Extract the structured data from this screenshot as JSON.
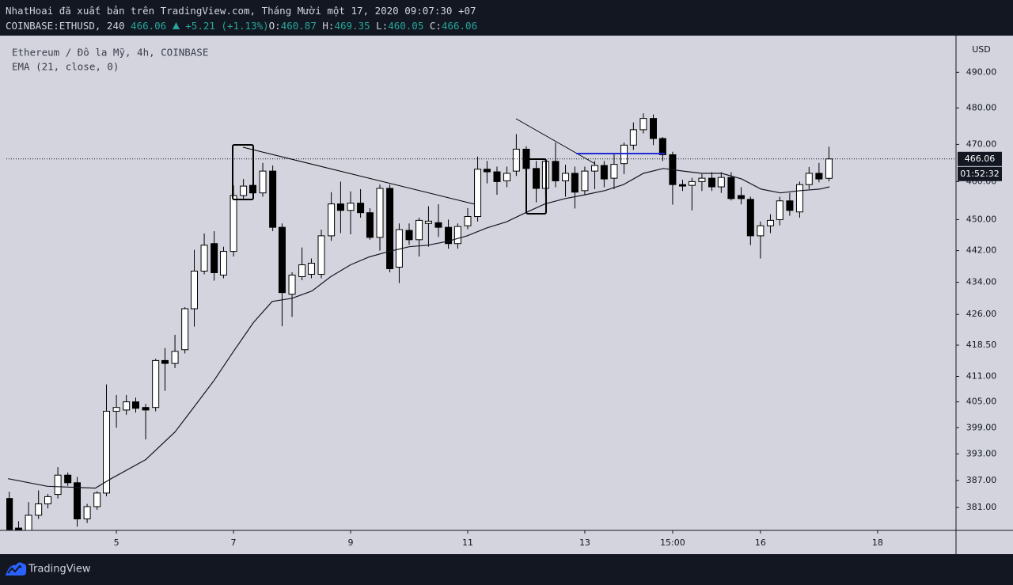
{
  "chart_data": {
    "type": "candlestick",
    "title": "Ethereum / Đô la Mỹ, 4h, COINBASE",
    "header": {
      "publisher": "NhatHoai đã xuất bản trên TradingView.com, Tháng Mười một 17, 2020 09:07:30 +07",
      "symbol": "COINBASE:ETHUSD, 240",
      "change": "+5.21 (+1.13%)",
      "ohlc_labels": [
        "O:",
        "H:",
        "L:",
        "C:"
      ]
    },
    "y_axis_label": "USD",
    "countdown": "01:52:32",
    "up_color": "#ffffff",
    "down_color": "#000000",
    "wick_color": "#000000",
    "log_scale": true,
    "grid": false,
    "x": [
      3.17,
      3.33,
      3.5,
      3.67,
      3.83,
      4,
      4.17,
      4.33,
      4.5,
      4.67,
      4.83,
      5,
      5.17,
      5.33,
      5.5,
      5.67,
      5.83,
      6,
      6.17,
      6.33,
      6.5,
      6.67,
      6.83,
      7,
      7.17,
      7.33,
      7.5,
      7.67,
      7.83,
      8,
      8.17,
      8.33,
      8.5,
      8.67,
      8.83,
      9,
      9.17,
      9.33,
      9.5,
      9.67,
      9.83,
      10,
      10.17,
      10.33,
      10.5,
      10.67,
      10.83,
      11,
      11.17,
      11.33,
      11.5,
      11.67,
      11.83,
      12,
      12.17,
      12.33,
      12.5,
      12.67,
      12.83,
      13,
      13.17,
      13.33,
      13.5,
      13.67,
      13.83,
      14,
      14.17,
      14.33,
      14.5,
      14.67,
      14.83,
      15,
      15.17,
      15.33,
      15.5,
      15.67,
      15.83,
      16,
      16.17,
      16.33,
      16.5,
      16.67,
      16.83,
      17,
      17.17
    ],
    "open": [
      383.0,
      376.5,
      376.0,
      379.3,
      381.8,
      383.9,
      388.2,
      386.5,
      378.5,
      381.2,
      384.2,
      402.8,
      403.1,
      405.0,
      403.7,
      403.7,
      414.8,
      414.1,
      417.4,
      427.4,
      436.8,
      443.8,
      435.8,
      441.8,
      456.3,
      459.0,
      457.0,
      462.8,
      448.0,
      431.0,
      435.4,
      436.0,
      436.0,
      445.8,
      454.1,
      452.4,
      454.3,
      451.8,
      445.4,
      458.2,
      437.8,
      447.2,
      444.8,
      449.0,
      449.2,
      448.0,
      443.8,
      448.4,
      450.8,
      463.3,
      462.6,
      460.2,
      462.8,
      468.7,
      463.5,
      458.2,
      465.4,
      460.2,
      462.2,
      457.6,
      462.8,
      464.3,
      460.9,
      464.8,
      469.8,
      474.0,
      477.1,
      471.6,
      467.2,
      459.2,
      459.0,
      460.0,
      460.9,
      458.6,
      461.1,
      456.3,
      455.3,
      445.8,
      448.4,
      450.0,
      454.9,
      452.0,
      459.2,
      462.2,
      460.87
    ],
    "high": [
      384.5,
      378.0,
      382.2,
      384.8,
      384.0,
      390.0,
      388.8,
      387.8,
      381.8,
      384.6,
      409.1,
      406.6,
      406.6,
      406.0,
      404.5,
      415.2,
      417.8,
      421.0,
      427.8,
      442.2,
      446.4,
      447.0,
      443.0,
      459.0,
      460.7,
      460.2,
      465.0,
      464.3,
      449.0,
      436.5,
      442.8,
      440.0,
      447.4,
      457.2,
      460.0,
      457.4,
      458.0,
      453.0,
      459.2,
      459.2,
      449.0,
      449.0,
      450.5,
      453.5,
      454.0,
      450.0,
      449.0,
      453.0,
      466.7,
      465.5,
      464.0,
      464.0,
      472.8,
      469.5,
      465.5,
      466.0,
      470.5,
      464.5,
      464.0,
      464.0,
      465.5,
      465.5,
      467.6,
      470.5,
      476.0,
      478.5,
      478.2,
      472.0,
      468.0,
      460.5,
      461.0,
      462.0,
      462.5,
      462.5,
      462.5,
      458.5,
      456.0,
      449.5,
      451.4,
      456.0,
      457.0,
      460.0,
      463.9,
      465.0,
      469.35
    ],
    "low": [
      375.5,
      373.0,
      375.5,
      378.5,
      380.8,
      383.0,
      385.8,
      376.8,
      377.6,
      380.5,
      383.5,
      399.0,
      402.0,
      402.5,
      396.3,
      402.8,
      407.6,
      413.0,
      416.5,
      423.0,
      436.0,
      434.4,
      435.0,
      440.5,
      455.5,
      456.5,
      456.0,
      447.0,
      423.1,
      425.4,
      434.5,
      435.0,
      435.0,
      444.5,
      446.5,
      446.2,
      450.5,
      444.8,
      442.0,
      436.5,
      433.8,
      443.5,
      440.5,
      443.0,
      445.5,
      442.5,
      442.5,
      447.5,
      449.5,
      459.5,
      456.5,
      458.5,
      461.5,
      461.0,
      454.5,
      456.0,
      458.5,
      456.0,
      452.9,
      456.5,
      458.0,
      458.5,
      458.0,
      462.0,
      468.5,
      473.0,
      469.8,
      465.5,
      453.9,
      457.5,
      452.4,
      457.5,
      457.5,
      457.0,
      455.0,
      454.0,
      443.4,
      440.0,
      446.5,
      448.5,
      451.0,
      450.5,
      458.0,
      459.8,
      460.05
    ],
    "close": [
      376.2,
      374.0,
      379.3,
      381.8,
      383.4,
      388.2,
      386.5,
      378.5,
      381.2,
      384.2,
      402.8,
      403.7,
      405.0,
      403.5,
      403.1,
      414.8,
      414.1,
      417.0,
      427.4,
      436.8,
      443.4,
      436.4,
      441.8,
      456.3,
      458.8,
      457.0,
      462.8,
      448.0,
      431.4,
      435.8,
      438.4,
      438.8,
      445.8,
      454.1,
      452.4,
      454.3,
      451.8,
      445.4,
      458.2,
      437.4,
      447.4,
      444.8,
      449.8,
      449.6,
      448.0,
      443.8,
      448.2,
      450.8,
      463.3,
      462.6,
      460.0,
      462.2,
      468.7,
      463.5,
      458.2,
      465.4,
      460.2,
      462.2,
      457.2,
      462.8,
      464.3,
      460.7,
      464.6,
      469.8,
      474.0,
      477.1,
      471.6,
      467.2,
      459.2,
      458.8,
      460.0,
      460.9,
      458.6,
      461.1,
      455.5,
      455.5,
      445.8,
      448.4,
      449.8,
      454.9,
      452.4,
      459.2,
      462.2,
      460.7,
      466.06
    ],
    "overlays": [
      {
        "name": "EMA (21, close, 0)",
        "color": "#131722",
        "x": [
          3.15,
          3.82,
          4.64,
          4.91,
          5.5,
          6,
          6.32,
          6.66,
          7,
          7.34,
          7.66,
          8,
          8.34,
          8.66,
          9,
          9.32,
          9.66,
          10,
          10.32,
          10.66,
          10.99,
          11.32,
          11.66,
          11.99,
          12.32,
          12.66,
          13,
          13.34,
          13.66,
          14,
          14.34,
          14.68,
          15,
          15.34,
          15.68,
          16.01,
          16.34,
          16.68,
          17.01,
          17.18
        ],
        "values": [
          387.4,
          385.7,
          385.3,
          387.4,
          391.7,
          398.0,
          403.7,
          409.9,
          417.0,
          424.0,
          429.2,
          430.0,
          431.8,
          435.4,
          438.4,
          440.4,
          441.8,
          443.0,
          443.4,
          444.4,
          445.8,
          447.8,
          449.4,
          451.8,
          454.1,
          455.5,
          456.5,
          457.6,
          459.2,
          462.2,
          463.5,
          462.8,
          462.2,
          462.2,
          460.7,
          458.0,
          457.0,
          457.6,
          458.0,
          458.6
        ]
      }
    ],
    "xlim": [
      3.12,
      19.34
    ],
    "xticks": [
      5,
      7,
      9,
      11,
      13,
      {
        "value": 14.5,
        "label": "15:00"
      },
      16,
      18
    ],
    "ylim": [
      376,
      500.5
    ],
    "yticks": [
      {
        "value": 490,
        "label": "490.00"
      },
      {
        "value": 480,
        "label": "480.00"
      },
      {
        "value": 470,
        "label": "470.00"
      },
      {
        "value": 460,
        "label": "460.00"
      },
      {
        "value": 450,
        "label": "450.00"
      },
      {
        "value": 442,
        "label": "442.00"
      },
      {
        "value": 434,
        "label": "434.00"
      },
      {
        "value": 426,
        "label": "426.00"
      },
      {
        "value": 418.5,
        "label": "418.50"
      },
      {
        "value": 411,
        "label": "411.00"
      },
      {
        "value": 405,
        "label": "405.00"
      },
      {
        "value": 399,
        "label": "399.00"
      },
      {
        "value": 393,
        "label": "393.00"
      },
      {
        "value": 387,
        "label": "387.00"
      },
      {
        "value": 381,
        "label": "381.00"
      }
    ]
  },
  "footer": {
    "brand": "TradingView"
  }
}
